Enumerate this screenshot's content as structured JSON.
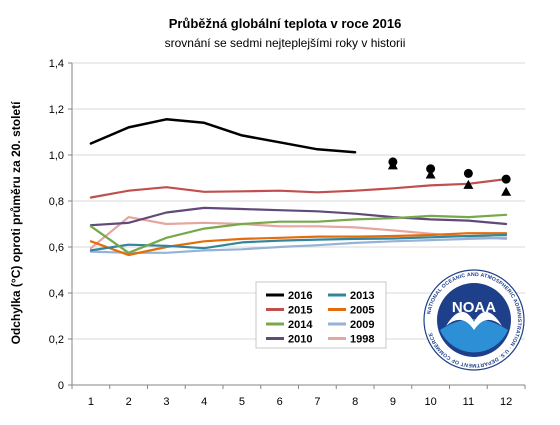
{
  "chart_data": {
    "type": "line",
    "title": "Průběžná globální teplota v roce 2016",
    "subtitle": "srovnání se sedmi nejteplejšími roky v historii",
    "xlabel": "",
    "ylabel": "Odchylka (°C) oproti průměru za 20. století",
    "x": [
      1,
      2,
      3,
      4,
      5,
      6,
      7,
      8,
      9,
      10,
      11,
      12
    ],
    "ylim": [
      0,
      1.4
    ],
    "yticks": [
      "0",
      "0,2",
      "0,4",
      "0,6",
      "0,8",
      "1,0",
      "1,2",
      "1,4"
    ],
    "legend_position": "bottom-center",
    "series": [
      {
        "name": "2016",
        "color": "#000000",
        "values": [
          1.05,
          1.12,
          1.155,
          1.14,
          1.085,
          1.055,
          1.025,
          1.012,
          null,
          null,
          null,
          null
        ]
      },
      {
        "name": "2015",
        "color": "#c0504d",
        "values": [
          0.815,
          0.845,
          0.86,
          0.84,
          0.842,
          0.845,
          0.838,
          0.845,
          0.855,
          0.868,
          0.875,
          0.895
        ]
      },
      {
        "name": "2014",
        "color": "#77a84a",
        "values": [
          0.69,
          0.575,
          0.64,
          0.68,
          0.7,
          0.71,
          0.71,
          0.72,
          0.725,
          0.735,
          0.73,
          0.74
        ]
      },
      {
        "name": "2010",
        "color": "#604a7b",
        "values": [
          0.695,
          0.705,
          0.75,
          0.77,
          0.765,
          0.76,
          0.755,
          0.745,
          0.73,
          0.72,
          0.715,
          0.7
        ]
      },
      {
        "name": "2013",
        "color": "#31859c",
        "values": [
          0.585,
          0.61,
          0.605,
          0.595,
          0.62,
          0.628,
          0.632,
          0.635,
          0.637,
          0.642,
          0.648,
          0.652
        ]
      },
      {
        "name": "2005",
        "color": "#e46c0a",
        "values": [
          0.625,
          0.565,
          0.6,
          0.625,
          0.635,
          0.64,
          0.645,
          0.645,
          0.648,
          0.652,
          0.66,
          0.66
        ]
      },
      {
        "name": "2009",
        "color": "#95b3d7",
        "values": [
          0.58,
          0.575,
          0.575,
          0.585,
          0.59,
          0.6,
          0.608,
          0.618,
          0.625,
          0.63,
          0.635,
          0.64
        ]
      },
      {
        "name": "1998",
        "color": "#e6a5a0",
        "values": [
          0.595,
          0.73,
          0.7,
          0.705,
          0.7,
          0.69,
          0.69,
          0.685,
          0.672,
          0.658,
          0.645,
          0.635
        ]
      }
    ],
    "projection_circles": {
      "x": [
        9,
        10,
        11,
        12
      ],
      "values": [
        0.97,
        0.94,
        0.92,
        0.895
      ]
    },
    "projection_triangles": {
      "x": [
        9,
        10,
        11,
        12
      ],
      "values": [
        0.955,
        0.915,
        0.87,
        0.84
      ]
    }
  },
  "logo": {
    "name": "noaa-logo",
    "text": "NOAA",
    "ring_text": "NATIONAL OCEANIC AND ATMOSPHERIC ADMINISTRATION · U.S. DEPARTMENT OF COMMERCE",
    "colors": {
      "dark_blue": "#1e3f8a",
      "light_blue": "#2d8fd6",
      "white": "#ffffff"
    }
  }
}
